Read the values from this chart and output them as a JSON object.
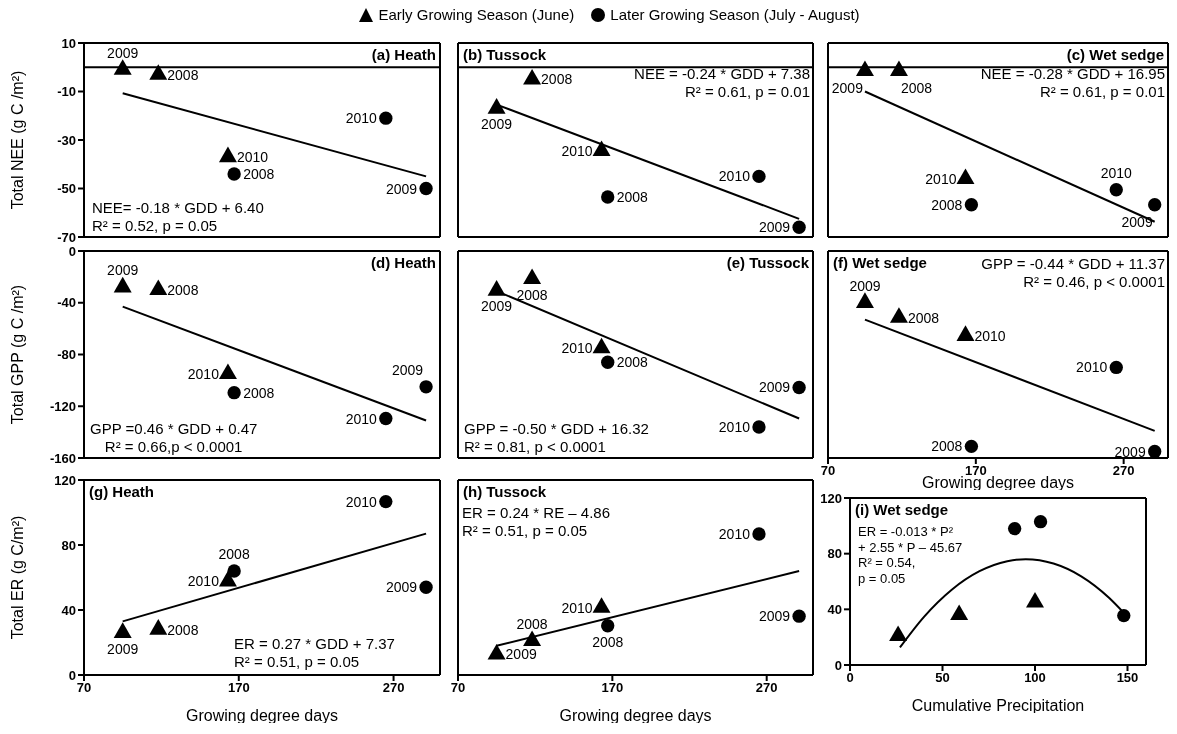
{
  "chart_data": [
    {
      "type": "scatter",
      "title": "(a) Heath",
      "ylabel": "Total NEE (g C /m²)",
      "xlim": [
        70,
        300
      ],
      "xticks": [
        70,
        170,
        270
      ],
      "ylim": [
        -70,
        10
      ],
      "yticks": [
        -70,
        -50,
        -30,
        -10,
        10
      ],
      "tick_labels": "y",
      "legend": "top",
      "ref_lines": [
        {
          "axis": "y",
          "value": 0
        }
      ],
      "series": [
        {
          "name": "Early Growing Season (June)",
          "color": "#000000",
          "marker": "triangle",
          "x": [
            95,
            118,
            163
          ],
          "values": [
            -1,
            -3,
            -37
          ]
        },
        {
          "name": "Later Growing Season (July - August)",
          "color": "#000000",
          "marker": "circle",
          "x": [
            167,
            265,
            291
          ],
          "values": [
            -44,
            -21,
            -50
          ]
        },
        {
          "type": "line",
          "color": "#000000",
          "x": [
            95,
            291
          ],
          "values": [
            -10.7,
            -45
          ]
        }
      ],
      "annotations": [
        {
          "text": "2009",
          "x": 95,
          "y": -1
        },
        {
          "text": "2008",
          "x": 118,
          "y": -3
        },
        {
          "text": "2010",
          "x": 163,
          "y": -37
        },
        {
          "text": "2008",
          "x": 167,
          "y": -44
        },
        {
          "text": "2010",
          "x": 265,
          "y": -21
        },
        {
          "text": "2009",
          "x": 291,
          "y": -50
        },
        "NEE= -0.18 * GDD + 6.40",
        "R² = 0.52, p = 0.05"
      ]
    },
    {
      "type": "scatter",
      "title": "(b) Tussock",
      "xlim": [
        70,
        300
      ],
      "xticks": [
        70,
        170,
        270
      ],
      "ylim": [
        -70,
        10
      ],
      "yticks": [
        -70,
        -50,
        -30,
        -10,
        10
      ],
      "tick_labels": false,
      "ref_lines": [
        {
          "axis": "y",
          "value": 0
        }
      ],
      "series": [
        {
          "color": "#000000",
          "marker": "triangle",
          "x": [
            95,
            118,
            163
          ],
          "values": [
            -17,
            -5,
            -34.5
          ]
        },
        {
          "color": "#000000",
          "marker": "circle",
          "x": [
            167,
            265,
            291
          ],
          "values": [
            -53.5,
            -45,
            -66
          ]
        },
        {
          "type": "line",
          "color": "#000000",
          "x": [
            95,
            291
          ],
          "values": [
            -15.4,
            -62.5
          ]
        }
      ],
      "annotations": [
        {
          "text": "2009",
          "x": 95,
          "y": -17
        },
        {
          "text": "2008",
          "x": 118,
          "y": -5
        },
        {
          "text": "2010",
          "x": 163,
          "y": -34.5
        },
        {
          "text": "2008",
          "x": 167,
          "y": -53.5
        },
        {
          "text": "2010",
          "x": 265,
          "y": -45
        },
        {
          "text": "2009",
          "x": 291,
          "y": -66
        },
        "NEE = -0.24 * GDD + 7.38",
        "R² = 0.61, p = 0.01"
      ]
    },
    {
      "type": "scatter",
      "title": "(c) Wet sedge",
      "xlim": [
        70,
        300
      ],
      "xticks": [
        70,
        170,
        270
      ],
      "ylim": [
        -70,
        10
      ],
      "yticks": [
        -70,
        -50,
        -30,
        -10,
        10
      ],
      "tick_labels": false,
      "ref_lines": [
        {
          "axis": "y",
          "value": 0
        }
      ],
      "series": [
        {
          "color": "#000000",
          "marker": "triangle",
          "x": [
            95,
            118,
            163
          ],
          "values": [
            -1.5,
            -1.5,
            -46
          ]
        },
        {
          "color": "#000000",
          "marker": "circle",
          "x": [
            167,
            265,
            291
          ],
          "values": [
            -56.7,
            -50.5,
            -56.7
          ]
        },
        {
          "type": "line",
          "color": "#000000",
          "x": [
            95,
            291
          ],
          "values": [
            -10,
            -63.7
          ]
        }
      ],
      "annotations": [
        {
          "text": "2009",
          "x": 95,
          "y": -1.5
        },
        {
          "text": "2008",
          "x": 118,
          "y": -1.5
        },
        {
          "text": "2010",
          "x": 163,
          "y": -46
        },
        {
          "text": "2008",
          "x": 167,
          "y": -56.7
        },
        {
          "text": "2010",
          "x": 265,
          "y": -50.5
        },
        {
          "text": "2009",
          "x": 291,
          "y": -56.7
        },
        "NEE = -0.28 * GDD + 16.95",
        "R² = 0.61, p = 0.01"
      ]
    },
    {
      "type": "scatter",
      "title": "(d) Heath",
      "ylabel": "Total GPP (g C /m²)",
      "xlim": [
        70,
        300
      ],
      "xticks": [
        70,
        170,
        270
      ],
      "ylim": [
        -160,
        0
      ],
      "yticks": [
        -160,
        -120,
        -80,
        -40,
        0
      ],
      "tick_labels": "y",
      "series": [
        {
          "color": "#000000",
          "marker": "triangle",
          "x": [
            95,
            118,
            163
          ],
          "values": [
            -28,
            -30,
            -95
          ]
        },
        {
          "color": "#000000",
          "marker": "circle",
          "x": [
            167,
            265,
            291
          ],
          "values": [
            -109.5,
            -129.5,
            -105
          ]
        },
        {
          "type": "line",
          "color": "#000000",
          "x": [
            95,
            291
          ],
          "values": [
            -43,
            -131
          ]
        }
      ],
      "annotations": [
        {
          "text": "2009",
          "x": 95,
          "y": -28
        },
        {
          "text": "2008",
          "x": 118,
          "y": -30
        },
        {
          "text": "2010",
          "x": 163,
          "y": -95
        },
        {
          "text": "2008",
          "x": 167,
          "y": -109.5
        },
        {
          "text": "2010",
          "x": 265,
          "y": -129.5
        },
        {
          "text": "2009",
          "x": 291,
          "y": -105
        },
        "GPP =0.46 * GDD + 0.47",
        "R² = 0.66,p < 0.0001"
      ]
    },
    {
      "type": "scatter",
      "title": "(e) Tussock",
      "xlim": [
        70,
        300
      ],
      "xticks": [
        70,
        170,
        270
      ],
      "ylim": [
        -160,
        0
      ],
      "yticks": [
        -160,
        -120,
        -80,
        -40,
        0
      ],
      "tick_labels": false,
      "series": [
        {
          "color": "#000000",
          "marker": "triangle",
          "x": [
            95,
            118,
            163
          ],
          "values": [
            -30.5,
            -21.5,
            -75
          ]
        },
        {
          "color": "#000000",
          "marker": "circle",
          "x": [
            167,
            265,
            291
          ],
          "values": [
            -86,
            -136,
            -105.5
          ]
        },
        {
          "type": "line",
          "color": "#000000",
          "x": [
            95,
            291
          ],
          "values": [
            -31,
            -129.5
          ]
        }
      ],
      "annotations": [
        {
          "text": "2009",
          "x": 95,
          "y": -30.5
        },
        {
          "text": "2008",
          "x": 118,
          "y": -21.5
        },
        {
          "text": "2010",
          "x": 163,
          "y": -75
        },
        {
          "text": "2008",
          "x": 167,
          "y": -86
        },
        {
          "text": "2010",
          "x": 265,
          "y": -136
        },
        {
          "text": "2009",
          "x": 291,
          "y": -105.5
        },
        "GPP = -0.50 * GDD + 16.32",
        "R² = 0.81, p < 0.0001"
      ]
    },
    {
      "type": "scatter",
      "title": "(f) Wet sedge",
      "xlabel": "Growing degree days",
      "xlim": [
        70,
        300
      ],
      "xticks": [
        70,
        170,
        270
      ],
      "ylim": [
        -160,
        0
      ],
      "yticks": [
        -160,
        -120,
        -80,
        -40,
        0
      ],
      "tick_labels": "x",
      "series": [
        {
          "color": "#000000",
          "marker": "triangle",
          "x": [
            95,
            118,
            163
          ],
          "values": [
            -40,
            -51.5,
            -65.5
          ]
        },
        {
          "color": "#000000",
          "marker": "circle",
          "x": [
            167,
            265,
            291
          ],
          "values": [
            -151,
            -90,
            -155
          ]
        },
        {
          "type": "line",
          "color": "#000000",
          "x": [
            95,
            291
          ],
          "values": [
            -53,
            -139
          ]
        }
      ],
      "annotations": [
        {
          "text": "2009",
          "x": 95,
          "y": -40
        },
        {
          "text": "2008",
          "x": 118,
          "y": -51.5
        },
        {
          "text": "2010",
          "x": 163,
          "y": -65.5
        },
        {
          "text": "2008",
          "x": 167,
          "y": -151
        },
        {
          "text": "2010",
          "x": 265,
          "y": -90
        },
        {
          "text": "2009",
          "x": 291,
          "y": -155
        },
        "GPP = -0.44 * GDD + 11.37",
        "R² = 0.46, p < 0.0001"
      ]
    },
    {
      "type": "scatter",
      "title": "(g) Heath",
      "xlabel": "Growing degree days",
      "ylabel": "Total ER (g C/m²)",
      "xlim": [
        70,
        300
      ],
      "xticks": [
        70,
        170,
        270
      ],
      "ylim": [
        0,
        120
      ],
      "yticks": [
        0,
        40,
        80,
        120
      ],
      "series": [
        {
          "color": "#000000",
          "marker": "triangle",
          "x": [
            95,
            118,
            163
          ],
          "values": [
            26,
            28,
            57.7
          ]
        },
        {
          "color": "#000000",
          "marker": "circle",
          "x": [
            167,
            265,
            291
          ],
          "values": [
            64,
            106.7,
            54
          ]
        },
        {
          "type": "line",
          "color": "#000000",
          "x": [
            95,
            291
          ],
          "values": [
            33,
            87
          ]
        }
      ],
      "annotations": [
        {
          "text": "2009",
          "x": 95,
          "y": 26
        },
        {
          "text": "2008",
          "x": 118,
          "y": 28
        },
        {
          "text": "2010",
          "x": 163,
          "y": 57.7
        },
        {
          "text": "2008",
          "x": 167,
          "y": 64
        },
        {
          "text": "2010",
          "x": 265,
          "y": 106.7
        },
        {
          "text": "2009",
          "x": 291,
          "y": 54
        },
        "ER = 0.27 * GDD + 7.37",
        "R² = 0.51, p = 0.05"
      ]
    },
    {
      "type": "scatter",
      "title": "(h) Tussock",
      "xlabel": "Growing degree days",
      "xlim": [
        70,
        300
      ],
      "xticks": [
        70,
        170,
        270
      ],
      "ylim": [
        0,
        120
      ],
      "yticks": [
        0,
        40,
        80,
        120
      ],
      "tick_labels": "x",
      "series": [
        {
          "color": "#000000",
          "marker": "triangle",
          "x": [
            95,
            118,
            163
          ],
          "values": [
            12.7,
            21,
            41.5
          ]
        },
        {
          "color": "#000000",
          "marker": "circle",
          "x": [
            167,
            265,
            291
          ],
          "values": [
            30.3,
            86.8,
            36.2
          ]
        },
        {
          "type": "line",
          "color": "#000000",
          "x": [
            95,
            291
          ],
          "values": [
            18,
            64
          ]
        }
      ],
      "annotations": [
        {
          "text": "2009",
          "x": 95,
          "y": 12.7
        },
        {
          "text": "2008",
          "x": 118,
          "y": 21
        },
        {
          "text": "2010",
          "x": 163,
          "y": 41.5
        },
        {
          "text": "2008",
          "x": 167,
          "y": 30.3
        },
        {
          "text": "2010",
          "x": 265,
          "y": 86.8
        },
        {
          "text": "2009",
          "x": 291,
          "y": 36.2
        },
        "ER = 0.24 * RE – 4.86",
        "R² = 0.51, p = 0.05"
      ]
    },
    {
      "type": "scatter",
      "title": "(i) Wet sedge",
      "xlabel": "Cumulative Precipitation",
      "xlim": [
        0,
        160
      ],
      "xticks": [
        0,
        50,
        100,
        150
      ],
      "ylim": [
        0,
        120
      ],
      "yticks": [
        0,
        40,
        80,
        120
      ],
      "series": [
        {
          "color": "#000000",
          "marker": "triangle",
          "x": [
            26,
            59,
            100
          ],
          "values": [
            21,
            36,
            45
          ]
        },
        {
          "color": "#000000",
          "marker": "circle",
          "x": [
            89,
            103,
            148
          ],
          "values": [
            98,
            103,
            35.5
          ]
        },
        {
          "type": "line",
          "color": "#000000",
          "x": [
            27,
            40,
            55,
            70,
            85,
            95,
            110,
            125,
            140,
            148
          ],
          "values": [
            12.6,
            34.6,
            54.1,
            67.4,
            74.6,
            76,
            72.9,
            63.7,
            48.3,
            37.5
          ]
        }
      ],
      "annotations": [
        "ER = -0.013 * P²",
        "+ 2.55 * P – 45.67",
        "R² = 0.54,",
        "p = 0.05"
      ]
    }
  ]
}
